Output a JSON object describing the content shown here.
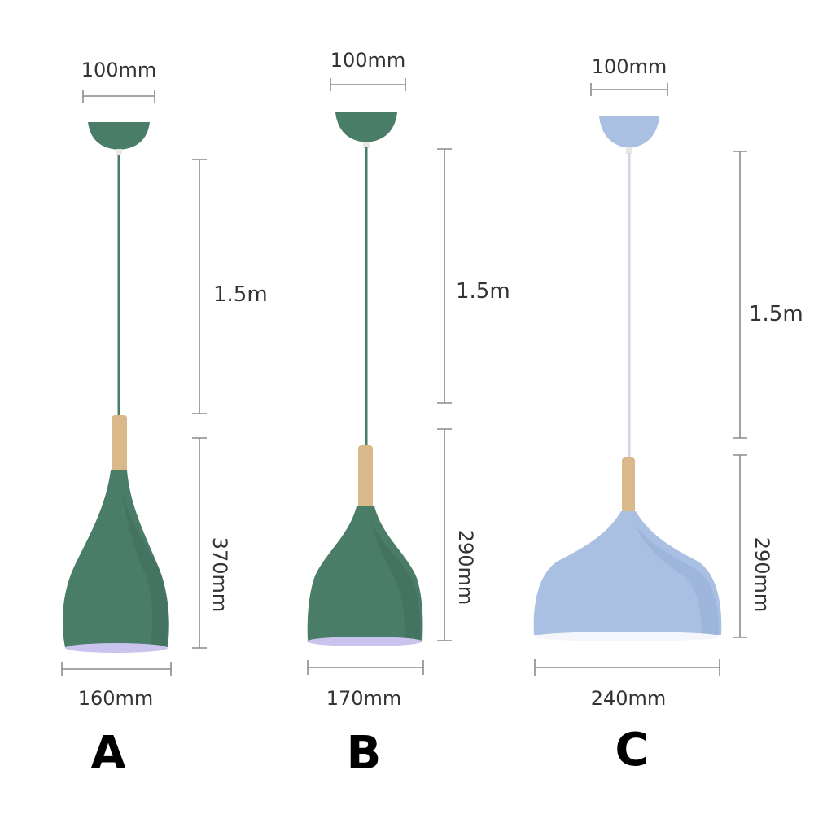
{
  "colors": {
    "green": "#4a7d68",
    "green_dark": "#3d6b58",
    "blue": "#a9c0e3",
    "blue_dark": "#94acd6",
    "wood": "#d9b98a",
    "inner_lilac": "#c9c3ee",
    "inner_white": "#f4f6fb"
  },
  "lamps": [
    {
      "label": "A",
      "canopy_width": "100mm",
      "cord_length": "1.5m",
      "shade_height": "370mm",
      "shade_width": "160mm",
      "shade_color": "green"
    },
    {
      "label": "B",
      "canopy_width": "100mm",
      "cord_length": "1.5m",
      "shade_height": "290mm",
      "shade_width": "170mm",
      "shade_color": "green"
    },
    {
      "label": "C",
      "canopy_width": "100mm",
      "cord_length": "1.5m",
      "shade_height": "290mm",
      "shade_width": "240mm",
      "shade_color": "blue"
    }
  ]
}
